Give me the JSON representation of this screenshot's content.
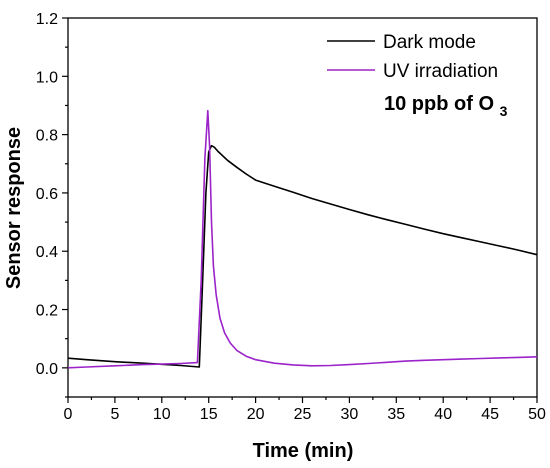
{
  "chart_data": {
    "type": "line",
    "xlabel": "Time (min)",
    "ylabel": "Sensor response",
    "xlim": [
      0,
      50
    ],
    "ylim": [
      -0.1,
      1.2
    ],
    "x_ticks": [
      0,
      5,
      10,
      15,
      20,
      25,
      30,
      35,
      40,
      45,
      50
    ],
    "y_ticks": [
      0.0,
      0.2,
      0.4,
      0.6,
      0.8,
      1.0,
      1.2
    ],
    "x_tick_labels": [
      "0",
      "5",
      "10",
      "15",
      "20",
      "25",
      "30",
      "35",
      "40",
      "45",
      "50"
    ],
    "y_tick_labels": [
      "0.0",
      "0.2",
      "0.4",
      "0.6",
      "0.8",
      "1.0",
      "1.2"
    ],
    "grid": false,
    "legend_position": "top-right",
    "annotation": {
      "text": "10 ppb of O",
      "subscript": "3"
    },
    "series": [
      {
        "name": "Dark mode",
        "color": "#000000",
        "x": [
          0,
          2,
          5,
          8,
          10,
          12,
          14,
          14.3,
          14.7,
          15.0,
          15.3,
          15.6,
          16,
          17,
          18,
          19,
          20,
          22,
          24,
          26,
          28,
          30,
          32,
          34,
          36,
          38,
          40,
          42,
          44,
          46,
          48,
          50
        ],
        "y": [
          0.033,
          0.028,
          0.021,
          0.016,
          0.012,
          0.008,
          0.003,
          0.25,
          0.6,
          0.74,
          0.762,
          0.757,
          0.742,
          0.712,
          0.688,
          0.665,
          0.644,
          0.623,
          0.602,
          0.581,
          0.562,
          0.543,
          0.525,
          0.508,
          0.492,
          0.476,
          0.46,
          0.446,
          0.432,
          0.418,
          0.404,
          0.388
        ]
      },
      {
        "name": "UV irradiation",
        "color": "#9b23c9",
        "x": [
          0,
          2,
          5,
          8,
          10,
          12,
          13.8,
          14.2,
          14.6,
          14.9,
          15.1,
          15.3,
          15.5,
          15.8,
          16.2,
          16.7,
          17.3,
          18,
          19,
          20,
          22,
          24,
          26,
          28,
          30,
          32,
          34,
          36,
          38,
          40,
          42,
          44,
          46,
          48,
          50
        ],
        "y": [
          0.0,
          0.003,
          0.007,
          0.011,
          0.013,
          0.015,
          0.018,
          0.3,
          0.72,
          0.882,
          0.76,
          0.5,
          0.35,
          0.25,
          0.17,
          0.12,
          0.085,
          0.06,
          0.04,
          0.028,
          0.016,
          0.01,
          0.007,
          0.008,
          0.011,
          0.015,
          0.019,
          0.023,
          0.026,
          0.028,
          0.03,
          0.032,
          0.034,
          0.036,
          0.038
        ]
      }
    ]
  }
}
